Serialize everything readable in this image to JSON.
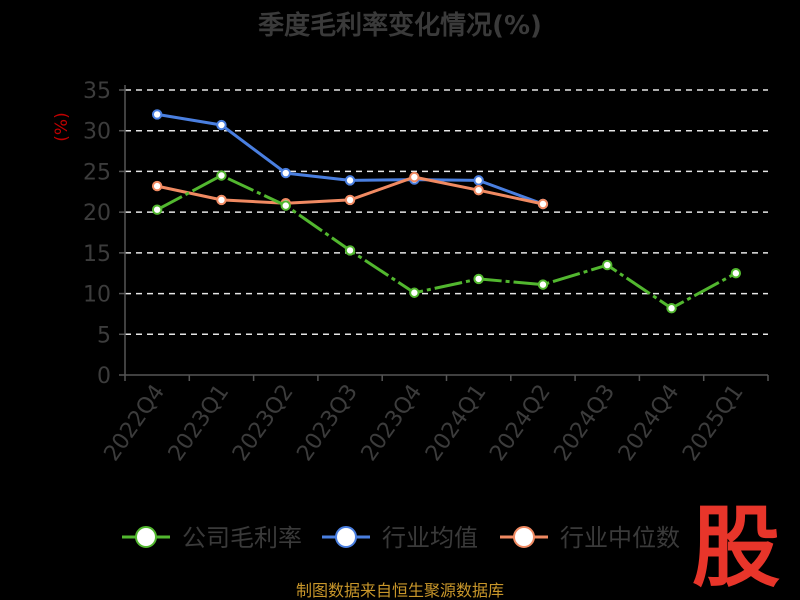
{
  "chart_data": {
    "type": "line",
    "title": "季度毛利率变化情况(%)",
    "ylabel": "(%)",
    "xlabel": "",
    "ylim": [
      0,
      35
    ],
    "yticks": [
      0,
      5,
      10,
      15,
      20,
      25,
      30,
      35
    ],
    "grid": true,
    "legend_position": "bottom",
    "categories": [
      "2022Q4",
      "2023Q1",
      "2023Q2",
      "2023Q3",
      "2023Q4",
      "2024Q1",
      "2024Q2",
      "2024Q3",
      "2024Q4",
      "2025Q1"
    ],
    "series": [
      {
        "name": "公司毛利率",
        "color": "#52b72f",
        "values": [
          20.3,
          24.5,
          20.8,
          15.3,
          10.1,
          11.8,
          11.1,
          13.5,
          8.2,
          12.5
        ]
      },
      {
        "name": "行业均值",
        "color": "#4a7fe0",
        "values": [
          32.0,
          30.7,
          24.8,
          23.9,
          24.0,
          23.9,
          21.0,
          null,
          null,
          null
        ]
      },
      {
        "name": "行业中位数",
        "color": "#f08a62",
        "values": [
          23.2,
          21.5,
          21.1,
          21.5,
          24.3,
          22.7,
          21.0,
          null,
          null,
          null
        ]
      }
    ]
  },
  "footer": {
    "source": "制图数据来自恒生聚源数据库"
  },
  "brand": {
    "text": "股"
  }
}
